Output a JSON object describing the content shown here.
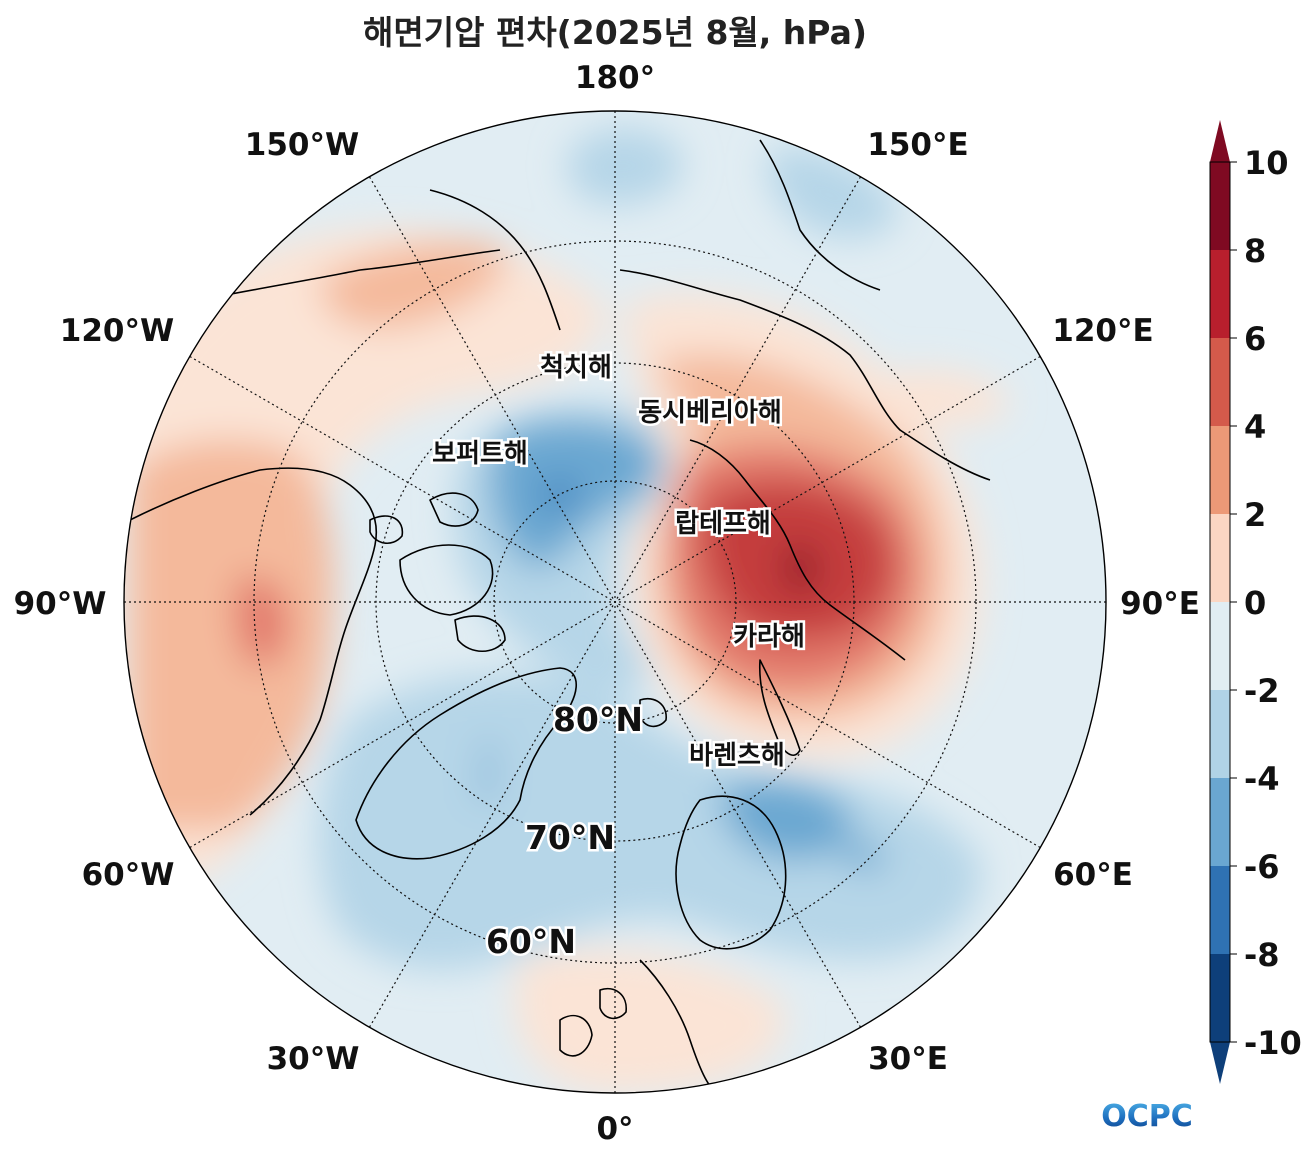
{
  "title": "해면기압 편차(2025년 8월, hPa)",
  "longitude_labels": [
    {
      "key": "180",
      "text": "180°"
    },
    {
      "key": "150w",
      "text": "150°W"
    },
    {
      "key": "150e",
      "text": "150°E"
    },
    {
      "key": "120w",
      "text": "120°W"
    },
    {
      "key": "120e",
      "text": "120°E"
    },
    {
      "key": "90w",
      "text": "90°W"
    },
    {
      "key": "90e",
      "text": "90°E"
    },
    {
      "key": "60w",
      "text": "60°W"
    },
    {
      "key": "60e",
      "text": "60°E"
    },
    {
      "key": "30w",
      "text": "30°W"
    },
    {
      "key": "30e",
      "text": "30°E"
    },
    {
      "key": "0",
      "text": "0°"
    }
  ],
  "latitude_labels": [
    {
      "key": "80n",
      "text": "80°N"
    },
    {
      "key": "70n",
      "text": "70°N"
    },
    {
      "key": "60n",
      "text": "60°N"
    }
  ],
  "sea_labels": [
    {
      "key": "chukchi",
      "text": "척치해"
    },
    {
      "key": "east-siberian",
      "text": "동시베리아해"
    },
    {
      "key": "beaufort",
      "text": "보퍼트해"
    },
    {
      "key": "laptev",
      "text": "랍테프해"
    },
    {
      "key": "kara",
      "text": "카라해"
    },
    {
      "key": "barents",
      "text": "바렌츠해"
    }
  ],
  "colorbar": {
    "ticks": [
      "10",
      "8",
      "6",
      "4",
      "2",
      "0",
      "-2",
      "-4",
      "-6",
      "-8",
      "-10"
    ],
    "colors": [
      "#7f0a22",
      "#b81f2d",
      "#d45a4b",
      "#ec9977",
      "#fbd6c3",
      "#e1edf3",
      "#b0d3e6",
      "#6aa7d1",
      "#2f72b3",
      "#0e3f7a"
    ],
    "extend": "both"
  },
  "colors": {
    "neutral": "#e1edf3",
    "positive_1": "#fbe4d6",
    "positive_2": "#f4b99b",
    "positive_3": "#e2786a",
    "positive_4": "#c43c3d",
    "positive_5": "#8f1428",
    "negative_1": "#b6d6e8",
    "negative_2": "#6aa7d1",
    "negative_3": "#3b7fbd"
  },
  "logo": {
    "text": "OCPC"
  }
}
